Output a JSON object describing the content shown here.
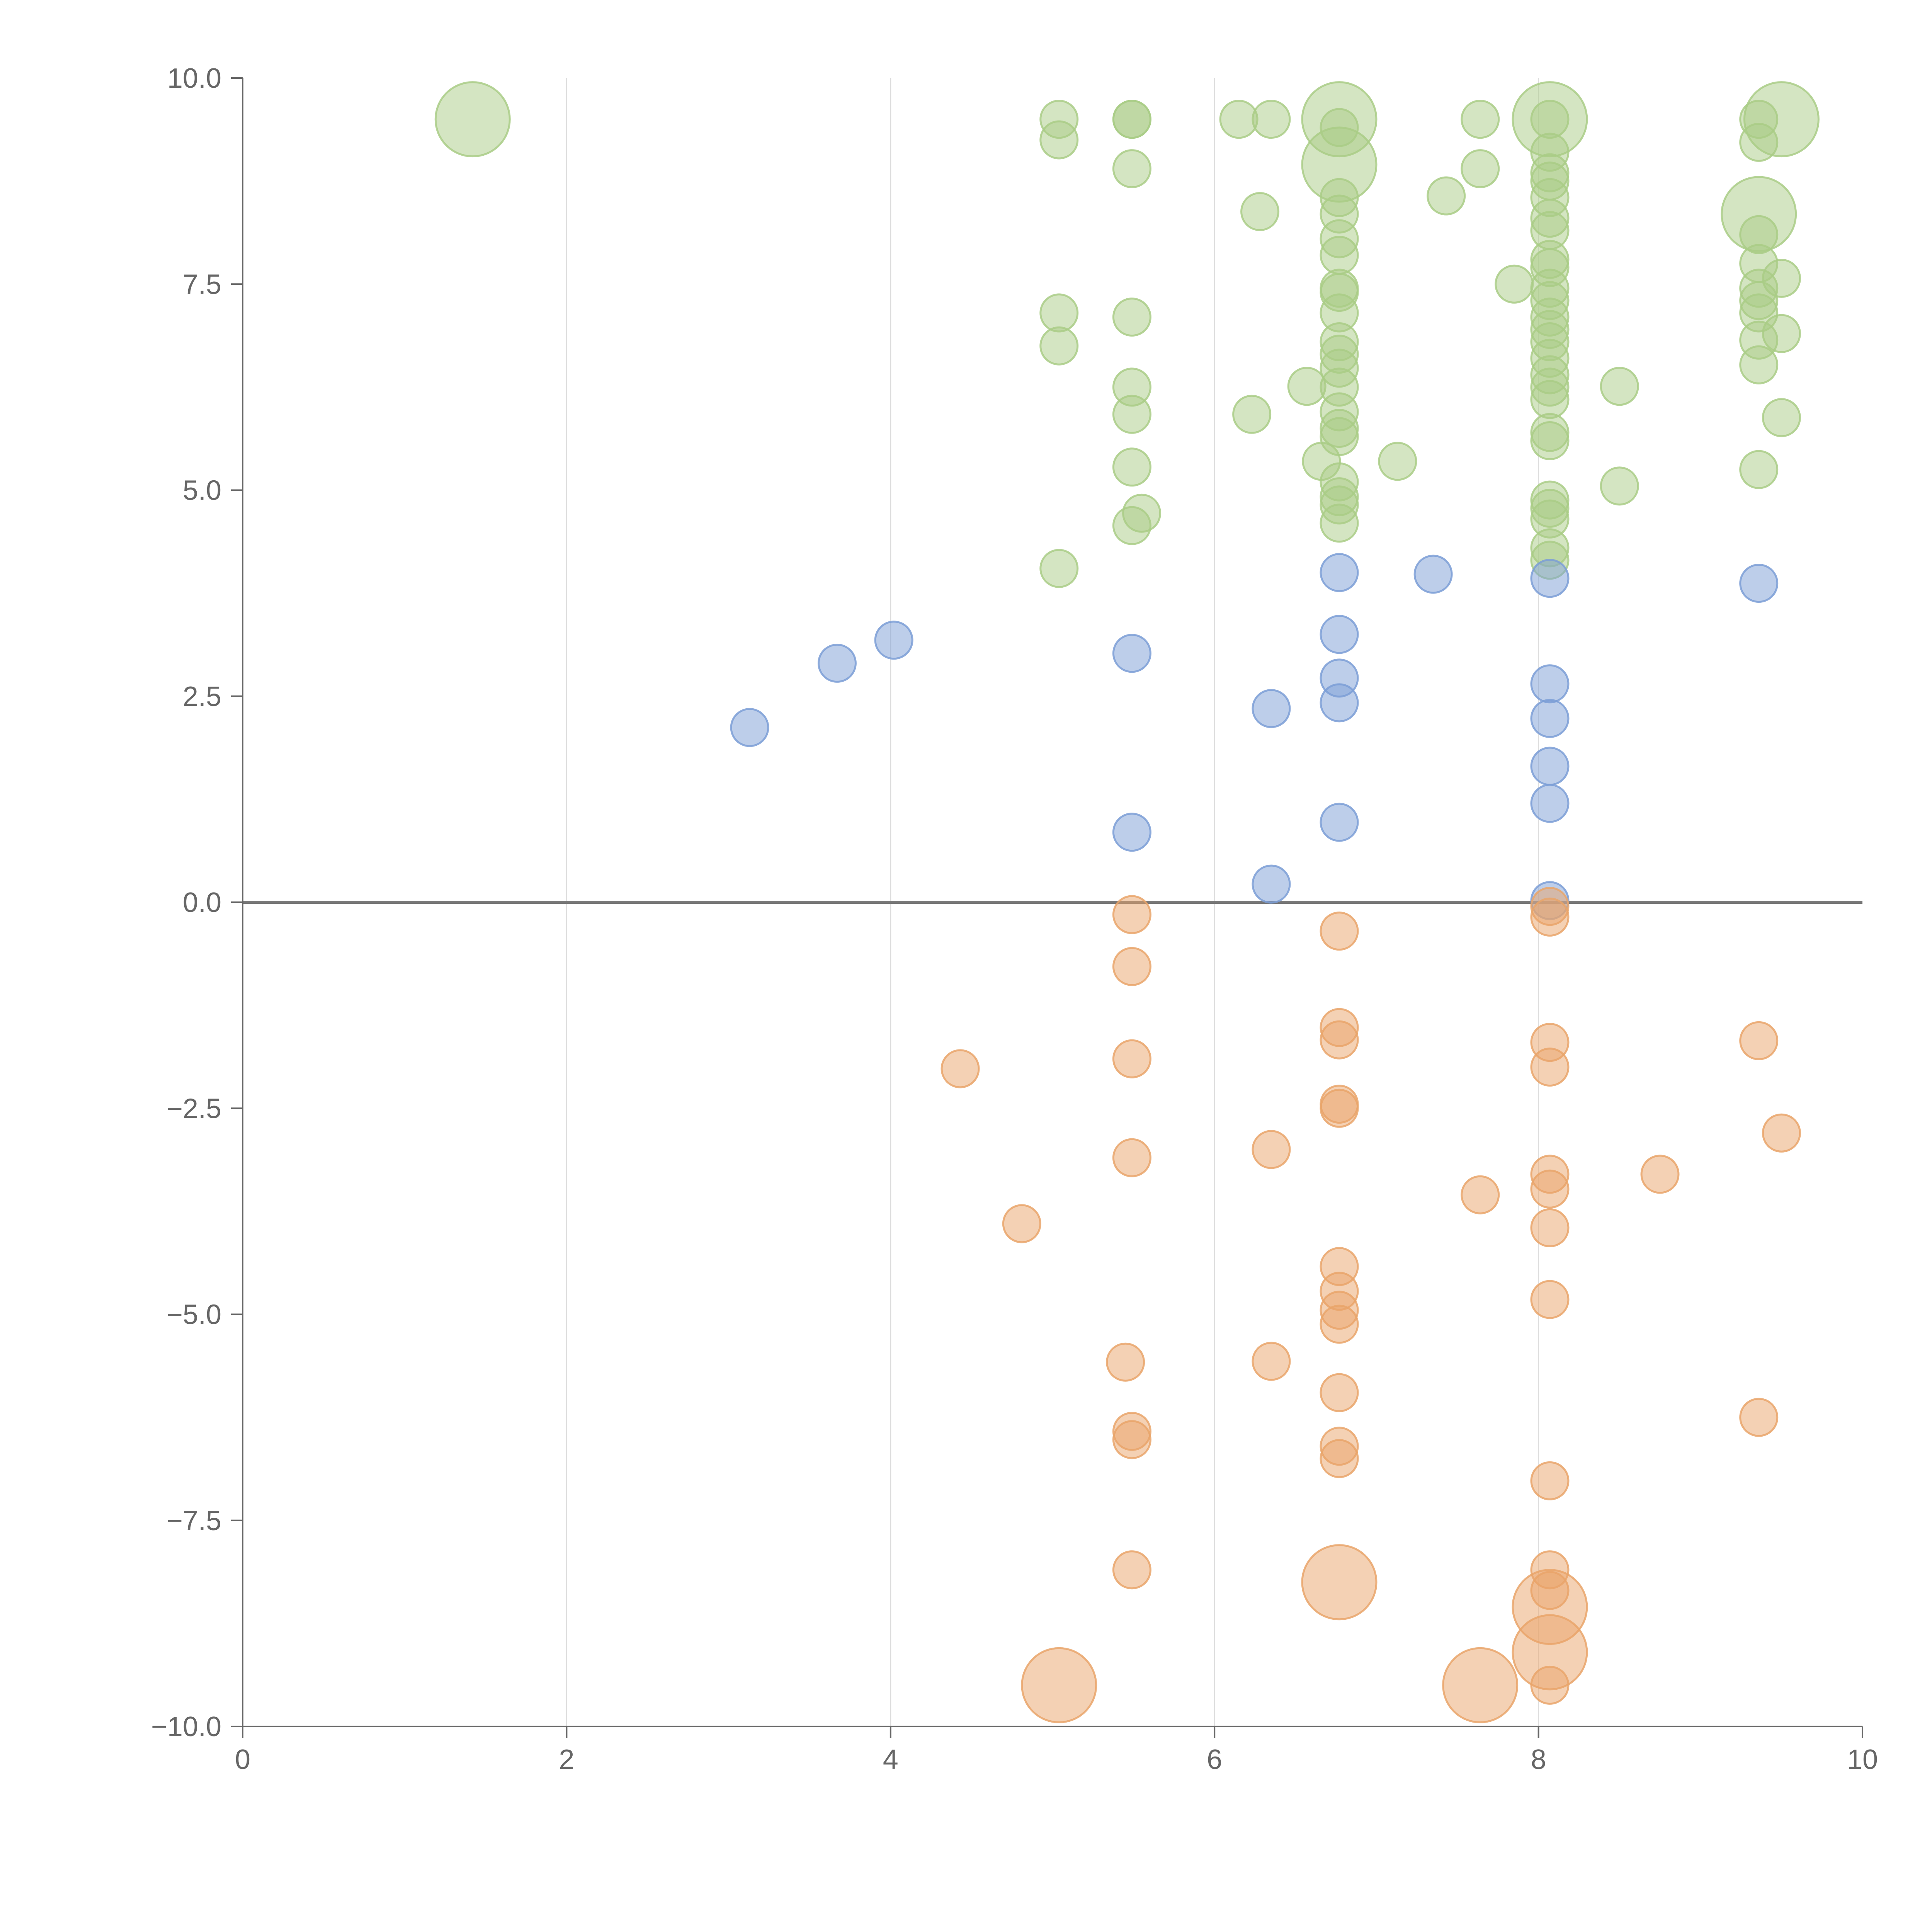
{
  "chart_data": {
    "type": "scatter",
    "subtype": "bubble",
    "title": "",
    "xlabel": "",
    "ylabel": "",
    "xlim": [
      0,
      10
    ],
    "ylim": [
      -10,
      10
    ],
    "x_ticks": [
      0,
      2,
      4,
      6,
      8,
      10
    ],
    "x_tick_labels": [
      "0",
      "2",
      "4",
      "6",
      "8",
      "10"
    ],
    "y_ticks": [
      10,
      7.5,
      5,
      2.5,
      0,
      -2.5,
      -5,
      -7.5,
      -10
    ],
    "y_tick_labels": [
      "10.0",
      "7.5",
      "5.0",
      "2.5",
      "0.0",
      "−2.5",
      "−5.0",
      "−7.5",
      "−10.0"
    ],
    "grid": {
      "x": true,
      "y": false
    },
    "zero_line": true,
    "legend": "none",
    "colors": {
      "green": "#a9cc86",
      "blue": "#7b9ed6",
      "orange": "#e9a46a",
      "axis": "#666666",
      "grid": "#dddddd"
    },
    "series": [
      {
        "name": "green",
        "color": "#a9cc86",
        "points": [
          {
            "x": 1.42,
            "y": 9.5,
            "size": 3
          },
          {
            "x": 5.04,
            "y": 9.5,
            "size": 1
          },
          {
            "x": 5.04,
            "y": 9.25,
            "size": 1
          },
          {
            "x": 5.04,
            "y": 7.15,
            "size": 1
          },
          {
            "x": 5.04,
            "y": 6.75,
            "size": 1
          },
          {
            "x": 5.04,
            "y": 4.05,
            "size": 1
          },
          {
            "x": 5.49,
            "y": 9.5,
            "size": 1
          },
          {
            "x": 5.49,
            "y": 9.5,
            "size": 1
          },
          {
            "x": 5.49,
            "y": 8.9,
            "size": 1
          },
          {
            "x": 5.49,
            "y": 7.1,
            "size": 1
          },
          {
            "x": 5.49,
            "y": 6.25,
            "size": 1
          },
          {
            "x": 5.49,
            "y": 5.92,
            "size": 1
          },
          {
            "x": 5.49,
            "y": 5.28,
            "size": 1
          },
          {
            "x": 5.55,
            "y": 4.72,
            "size": 1
          },
          {
            "x": 5.49,
            "y": 4.57,
            "size": 1
          },
          {
            "x": 6.15,
            "y": 9.5,
            "size": 1
          },
          {
            "x": 6.35,
            "y": 9.5,
            "size": 1
          },
          {
            "x": 6.28,
            "y": 8.38,
            "size": 1
          },
          {
            "x": 6.23,
            "y": 5.92,
            "size": 1
          },
          {
            "x": 6.57,
            "y": 6.26,
            "size": 1
          },
          {
            "x": 6.66,
            "y": 5.35,
            "size": 1
          },
          {
            "x": 6.77,
            "y": 9.5,
            "size": 3
          },
          {
            "x": 6.77,
            "y": 8.95,
            "size": 3
          },
          {
            "x": 6.77,
            "y": 9.4,
            "size": 1
          },
          {
            "x": 6.77,
            "y": 8.55,
            "size": 1
          },
          {
            "x": 6.77,
            "y": 8.35,
            "size": 1
          },
          {
            "x": 6.77,
            "y": 8.05,
            "size": 1
          },
          {
            "x": 6.77,
            "y": 7.85,
            "size": 1
          },
          {
            "x": 6.77,
            "y": 7.45,
            "size": 1
          },
          {
            "x": 6.77,
            "y": 7.4,
            "size": 1
          },
          {
            "x": 6.77,
            "y": 7.15,
            "size": 1
          },
          {
            "x": 6.77,
            "y": 6.8,
            "size": 1
          },
          {
            "x": 6.77,
            "y": 6.65,
            "size": 1
          },
          {
            "x": 6.77,
            "y": 6.48,
            "size": 1
          },
          {
            "x": 6.77,
            "y": 6.25,
            "size": 1
          },
          {
            "x": 6.77,
            "y": 5.95,
            "size": 1
          },
          {
            "x": 6.77,
            "y": 5.75,
            "size": 1
          },
          {
            "x": 6.77,
            "y": 5.65,
            "size": 1
          },
          {
            "x": 6.77,
            "y": 5.1,
            "size": 1
          },
          {
            "x": 6.77,
            "y": 4.92,
            "size": 1
          },
          {
            "x": 6.77,
            "y": 4.82,
            "size": 1
          },
          {
            "x": 6.77,
            "y": 4.6,
            "size": 1
          },
          {
            "x": 7.13,
            "y": 5.35,
            "size": 1
          },
          {
            "x": 7.43,
            "y": 8.57,
            "size": 1
          },
          {
            "x": 7.64,
            "y": 9.5,
            "size": 1
          },
          {
            "x": 7.64,
            "y": 8.9,
            "size": 1
          },
          {
            "x": 7.85,
            "y": 7.5,
            "size": 1
          },
          {
            "x": 8.07,
            "y": 9.5,
            "size": 3
          },
          {
            "x": 8.07,
            "y": 9.5,
            "size": 1
          },
          {
            "x": 8.07,
            "y": 9.1,
            "size": 1
          },
          {
            "x": 8.07,
            "y": 8.85,
            "size": 1
          },
          {
            "x": 8.07,
            "y": 8.75,
            "size": 1
          },
          {
            "x": 8.07,
            "y": 8.55,
            "size": 1
          },
          {
            "x": 8.07,
            "y": 8.3,
            "size": 1
          },
          {
            "x": 8.07,
            "y": 8.15,
            "size": 1
          },
          {
            "x": 8.07,
            "y": 7.8,
            "size": 1
          },
          {
            "x": 8.07,
            "y": 7.7,
            "size": 1
          },
          {
            "x": 8.07,
            "y": 7.45,
            "size": 1
          },
          {
            "x": 8.07,
            "y": 7.3,
            "size": 1
          },
          {
            "x": 8.07,
            "y": 7.1,
            "size": 1
          },
          {
            "x": 8.07,
            "y": 6.95,
            "size": 1
          },
          {
            "x": 8.07,
            "y": 6.8,
            "size": 1
          },
          {
            "x": 8.07,
            "y": 6.6,
            "size": 1
          },
          {
            "x": 8.07,
            "y": 6.4,
            "size": 1
          },
          {
            "x": 8.07,
            "y": 6.25,
            "size": 1
          },
          {
            "x": 8.07,
            "y": 6.1,
            "size": 1
          },
          {
            "x": 8.07,
            "y": 5.7,
            "size": 1
          },
          {
            "x": 8.07,
            "y": 5.6,
            "size": 1
          },
          {
            "x": 8.07,
            "y": 4.88,
            "size": 1
          },
          {
            "x": 8.07,
            "y": 4.78,
            "size": 1
          },
          {
            "x": 8.07,
            "y": 4.65,
            "size": 1
          },
          {
            "x": 8.07,
            "y": 4.3,
            "size": 1
          },
          {
            "x": 8.07,
            "y": 4.15,
            "size": 1
          },
          {
            "x": 8.5,
            "y": 6.26,
            "size": 1
          },
          {
            "x": 8.5,
            "y": 5.05,
            "size": 1
          },
          {
            "x": 9.36,
            "y": 9.5,
            "size": 1
          },
          {
            "x": 9.36,
            "y": 9.22,
            "size": 1
          },
          {
            "x": 9.36,
            "y": 8.35,
            "size": 3
          },
          {
            "x": 9.36,
            "y": 8.1,
            "size": 1
          },
          {
            "x": 9.36,
            "y": 7.75,
            "size": 1
          },
          {
            "x": 9.36,
            "y": 7.45,
            "size": 1
          },
          {
            "x": 9.36,
            "y": 7.3,
            "size": 1
          },
          {
            "x": 9.36,
            "y": 7.15,
            "size": 1
          },
          {
            "x": 9.36,
            "y": 6.82,
            "size": 1
          },
          {
            "x": 9.36,
            "y": 6.52,
            "size": 1
          },
          {
            "x": 9.36,
            "y": 5.25,
            "size": 1
          },
          {
            "x": 9.5,
            "y": 9.5,
            "size": 3
          },
          {
            "x": 9.5,
            "y": 7.57,
            "size": 1
          },
          {
            "x": 9.5,
            "y": 6.9,
            "size": 1
          },
          {
            "x": 9.5,
            "y": 5.88,
            "size": 1
          }
        ]
      },
      {
        "name": "blue",
        "color": "#7b9ed6",
        "points": [
          {
            "x": 3.13,
            "y": 2.12,
            "size": 1
          },
          {
            "x": 3.67,
            "y": 2.9,
            "size": 1
          },
          {
            "x": 4.02,
            "y": 3.18,
            "size": 1
          },
          {
            "x": 5.49,
            "y": 3.02,
            "size": 1
          },
          {
            "x": 5.49,
            "y": 0.85,
            "size": 1
          },
          {
            "x": 6.35,
            "y": 2.35,
            "size": 1
          },
          {
            "x": 6.35,
            "y": 0.22,
            "size": 1
          },
          {
            "x": 6.77,
            "y": 4.0,
            "size": 1
          },
          {
            "x": 6.77,
            "y": 3.25,
            "size": 1
          },
          {
            "x": 6.77,
            "y": 2.72,
            "size": 1
          },
          {
            "x": 6.77,
            "y": 2.42,
            "size": 1
          },
          {
            "x": 6.77,
            "y": 0.97,
            "size": 1
          },
          {
            "x": 7.35,
            "y": 3.98,
            "size": 1
          },
          {
            "x": 8.07,
            "y": 3.93,
            "size": 1
          },
          {
            "x": 8.07,
            "y": 2.65,
            "size": 1
          },
          {
            "x": 8.07,
            "y": 2.23,
            "size": 1
          },
          {
            "x": 8.07,
            "y": 1.65,
            "size": 1
          },
          {
            "x": 8.07,
            "y": 1.2,
            "size": 1
          },
          {
            "x": 8.07,
            "y": 0.02,
            "size": 1
          },
          {
            "x": 9.36,
            "y": 3.87,
            "size": 1
          }
        ]
      },
      {
        "name": "orange",
        "color": "#e9a46a",
        "points": [
          {
            "x": 4.43,
            "y": -2.02,
            "size": 1
          },
          {
            "x": 4.81,
            "y": -3.9,
            "size": 1
          },
          {
            "x": 5.04,
            "y": -9.5,
            "size": 3
          },
          {
            "x": 5.49,
            "y": -0.15,
            "size": 1
          },
          {
            "x": 5.49,
            "y": -0.78,
            "size": 1
          },
          {
            "x": 5.49,
            "y": -1.9,
            "size": 1
          },
          {
            "x": 5.49,
            "y": -3.1,
            "size": 1
          },
          {
            "x": 5.45,
            "y": -5.58,
            "size": 1
          },
          {
            "x": 5.49,
            "y": -6.42,
            "size": 1
          },
          {
            "x": 5.49,
            "y": -6.52,
            "size": 1
          },
          {
            "x": 5.49,
            "y": -8.1,
            "size": 1
          },
          {
            "x": 6.35,
            "y": -3.0,
            "size": 1
          },
          {
            "x": 6.35,
            "y": -5.57,
            "size": 1
          },
          {
            "x": 6.77,
            "y": -0.35,
            "size": 1
          },
          {
            "x": 6.77,
            "y": -1.52,
            "size": 1
          },
          {
            "x": 6.77,
            "y": -1.67,
            "size": 1
          },
          {
            "x": 6.77,
            "y": -2.45,
            "size": 1
          },
          {
            "x": 6.77,
            "y": -2.5,
            "size": 1
          },
          {
            "x": 6.77,
            "y": -4.42,
            "size": 1
          },
          {
            "x": 6.77,
            "y": -4.72,
            "size": 1
          },
          {
            "x": 6.77,
            "y": -4.95,
            "size": 1
          },
          {
            "x": 6.77,
            "y": -5.12,
            "size": 1
          },
          {
            "x": 6.77,
            "y": -5.95,
            "size": 1
          },
          {
            "x": 6.77,
            "y": -6.6,
            "size": 1
          },
          {
            "x": 6.77,
            "y": -6.75,
            "size": 1
          },
          {
            "x": 6.77,
            "y": -8.25,
            "size": 3
          },
          {
            "x": 7.64,
            "y": -3.55,
            "size": 1
          },
          {
            "x": 7.64,
            "y": -9.5,
            "size": 3
          },
          {
            "x": 8.07,
            "y": -0.05,
            "size": 1
          },
          {
            "x": 8.07,
            "y": -0.18,
            "size": 1
          },
          {
            "x": 8.07,
            "y": -1.7,
            "size": 1
          },
          {
            "x": 8.07,
            "y": -2.0,
            "size": 1
          },
          {
            "x": 8.07,
            "y": -3.3,
            "size": 1
          },
          {
            "x": 8.07,
            "y": -3.48,
            "size": 1
          },
          {
            "x": 8.07,
            "y": -3.95,
            "size": 1
          },
          {
            "x": 8.07,
            "y": -4.82,
            "size": 1
          },
          {
            "x": 8.07,
            "y": -7.02,
            "size": 1
          },
          {
            "x": 8.07,
            "y": -8.1,
            "size": 1
          },
          {
            "x": 8.07,
            "y": -8.35,
            "size": 1
          },
          {
            "x": 8.07,
            "y": -8.55,
            "size": 3
          },
          {
            "x": 8.07,
            "y": -9.1,
            "size": 3
          },
          {
            "x": 8.07,
            "y": -9.5,
            "size": 1
          },
          {
            "x": 8.75,
            "y": -3.3,
            "size": 1
          },
          {
            "x": 9.36,
            "y": -1.68,
            "size": 1
          },
          {
            "x": 9.36,
            "y": -6.25,
            "size": 1
          },
          {
            "x": 9.5,
            "y": -2.8,
            "size": 1
          }
        ]
      }
    ]
  }
}
